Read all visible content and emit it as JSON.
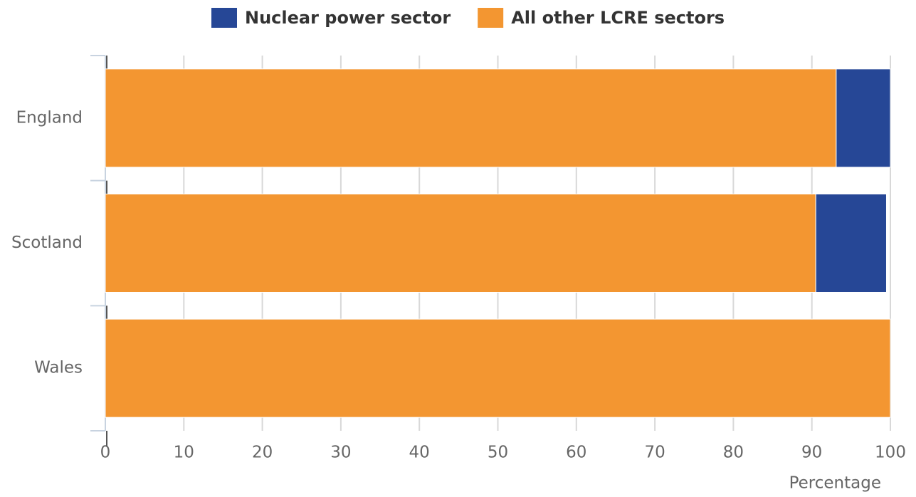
{
  "chart_data": {
    "type": "bar",
    "orientation": "horizontal",
    "stacked": true,
    "categories": [
      "England",
      "Scotland",
      "Wales"
    ],
    "series": [
      {
        "name": "Nuclear power sector",
        "color": "#264796",
        "values": [
          6.9,
          9.0,
          0
        ]
      },
      {
        "name": "All other LCRE sectors",
        "color": "#f39631",
        "values": [
          93.1,
          90.5,
          100
        ]
      }
    ],
    "xlabel": "Percentage",
    "xlim": [
      0,
      100
    ],
    "xticks": [
      0,
      10,
      20,
      30,
      40,
      50,
      60,
      70,
      80,
      90,
      100
    ],
    "grid": true,
    "legend": "top"
  }
}
